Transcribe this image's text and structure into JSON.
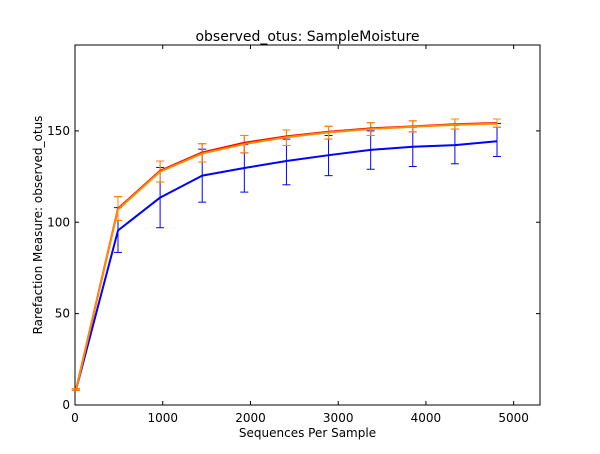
{
  "chart_data": {
    "type": "line",
    "title": "observed_otus: SampleMoisture",
    "xlabel": "Sequences Per Sample",
    "ylabel": "Rarefaction Measure: observed_otus",
    "xlim": [
      0,
      5300
    ],
    "ylim": [
      0,
      197
    ],
    "xticks": [
      0,
      1000,
      2000,
      3000,
      4000,
      5000
    ],
    "yticks": [
      0,
      50,
      100,
      150
    ],
    "grid": false,
    "legend": "none",
    "x": [
      10,
      490,
      970,
      1450,
      1930,
      2410,
      2890,
      3370,
      3850,
      4330,
      4810
    ],
    "series": [
      {
        "color": "#0000ff",
        "values": [
          8,
          95.5,
          113.5,
          125.5,
          129.7,
          133.5,
          136.7,
          139.6,
          141.3,
          142.2,
          144.3
        ],
        "err_low": [
          8,
          83.5,
          97,
          111,
          116.5,
          120.5,
          125.5,
          129,
          130.5,
          132,
          136
        ],
        "err_high": [
          9,
          108,
          130,
          140,
          142.5,
          145.5,
          147.5,
          150,
          152,
          153,
          154
        ]
      },
      {
        "color": "#ff0000",
        "values": [
          8,
          107.5,
          128.2,
          138.2,
          143.5,
          147,
          149.5,
          151.4,
          152.5,
          153.6,
          154.3
        ],
        "err_low": [
          8,
          101,
          122,
          133,
          138,
          142,
          145.5,
          147.5,
          149.5,
          151,
          152
        ],
        "err_high": [
          9,
          114,
          133.5,
          143,
          147.5,
          150.5,
          152.5,
          154.5,
          155.5,
          156.5,
          156.5
        ]
      },
      {
        "color": "#ff8c00",
        "values": [
          8,
          107,
          127.7,
          137.6,
          142.8,
          146.5,
          149.2,
          151,
          152.3,
          153.3,
          154
        ],
        "err_low": [
          8,
          101,
          122,
          133,
          138,
          142,
          145.5,
          147.5,
          149.5,
          151,
          152
        ],
        "err_high": [
          9,
          114,
          133.5,
          143,
          147.5,
          150.5,
          152.5,
          154.5,
          155.5,
          156.5,
          156.5
        ]
      }
    ]
  }
}
